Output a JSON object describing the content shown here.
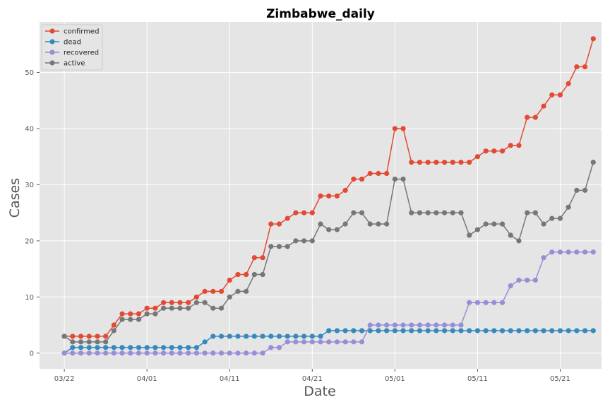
{
  "chart_data": {
    "type": "line",
    "title": "Zimbabwe_daily",
    "xlabel": "Date",
    "ylabel": "Cases",
    "x_start_date": "2020-03-22",
    "x_tick_labels": [
      "03/22",
      "04/01",
      "04/11",
      "04/21",
      "05/01",
      "05/11",
      "05/21"
    ],
    "x_tick_days": [
      0,
      10,
      20,
      30,
      40,
      50,
      60
    ],
    "y_ticks": [
      0,
      10,
      20,
      30,
      40,
      50
    ],
    "ylim": [
      -2.8,
      59
    ],
    "xlim": [
      -3,
      65
    ],
    "grid": true,
    "legend_position": "top-left",
    "series": [
      {
        "name": "confirmed",
        "color": "#E24A33",
        "values": [
          3,
          3,
          3,
          3,
          3,
          3,
          5,
          7,
          7,
          7,
          8,
          8,
          9,
          9,
          9,
          9,
          10,
          11,
          11,
          11,
          13,
          14,
          14,
          17,
          17,
          23,
          23,
          24,
          25,
          25,
          25,
          28,
          28,
          28,
          29,
          31,
          31,
          32,
          32,
          32,
          40,
          40,
          34,
          34,
          34,
          34,
          34,
          34,
          34,
          34,
          35,
          36,
          36,
          36,
          37,
          37,
          42,
          42,
          44,
          46,
          46,
          48,
          51,
          51,
          56
        ]
      },
      {
        "name": "dead",
        "color": "#348ABD",
        "values": [
          0,
          1,
          1,
          1,
          1,
          1,
          1,
          1,
          1,
          1,
          1,
          1,
          1,
          1,
          1,
          1,
          1,
          2,
          3,
          3,
          3,
          3,
          3,
          3,
          3,
          3,
          3,
          3,
          3,
          3,
          3,
          3,
          4,
          4,
          4,
          4,
          4,
          4,
          4,
          4,
          4,
          4,
          4,
          4,
          4,
          4,
          4,
          4,
          4,
          4,
          4,
          4,
          4,
          4,
          4,
          4,
          4,
          4,
          4,
          4,
          4,
          4,
          4,
          4,
          4
        ]
      },
      {
        "name": "recovered",
        "color": "#988ED5",
        "values": [
          0,
          0,
          0,
          0,
          0,
          0,
          0,
          0,
          0,
          0,
          0,
          0,
          0,
          0,
          0,
          0,
          0,
          0,
          0,
          0,
          0,
          0,
          0,
          0,
          0,
          1,
          1,
          2,
          2,
          2,
          2,
          2,
          2,
          2,
          2,
          2,
          2,
          5,
          5,
          5,
          5,
          5,
          5,
          5,
          5,
          5,
          5,
          5,
          5,
          9,
          9,
          9,
          9,
          9,
          12,
          13,
          13,
          13,
          17,
          18,
          18,
          18,
          18,
          18,
          18
        ]
      },
      {
        "name": "active",
        "color": "#777777",
        "values": [
          3,
          2,
          2,
          2,
          2,
          2,
          4,
          6,
          6,
          6,
          7,
          7,
          8,
          8,
          8,
          8,
          9,
          9,
          8,
          8,
          10,
          11,
          11,
          14,
          14,
          19,
          19,
          19,
          20,
          20,
          20,
          23,
          22,
          22,
          23,
          25,
          25,
          23,
          23,
          23,
          31,
          31,
          25,
          25,
          25,
          25,
          25,
          25,
          25,
          21,
          22,
          23,
          23,
          23,
          21,
          20,
          25,
          25,
          23,
          24,
          24,
          26,
          29,
          29,
          34
        ]
      }
    ]
  }
}
